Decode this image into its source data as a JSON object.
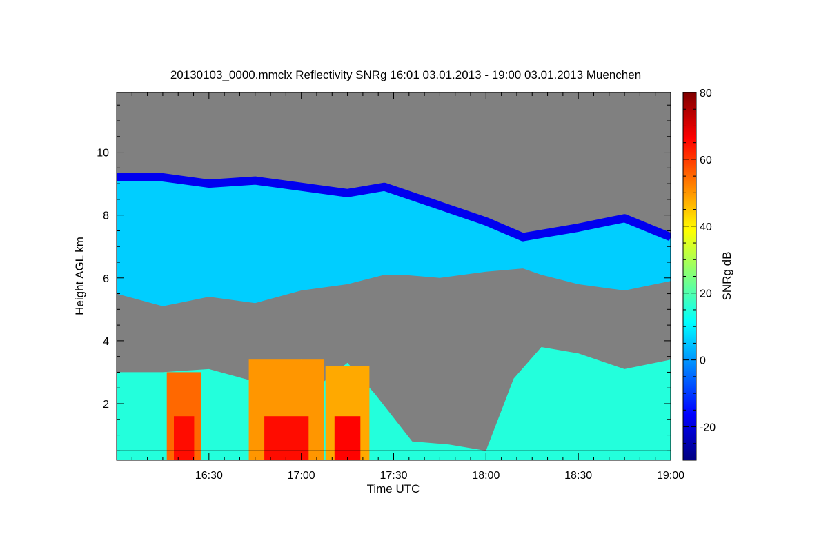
{
  "chart_data": {
    "type": "heatmap",
    "title": "20130103_0000.mmclx Reflectivity SNRg   16:01 03.01.2013 - 19:00 03.01.2013 Muenchen",
    "xlabel": "Time UTC",
    "ylabel": "Height AGL km",
    "colorbar_label": "SNRg dB",
    "x_range_hours": [
      16.0,
      19.0
    ],
    "y_range_km": [
      0.2,
      11.9
    ],
    "x_ticks": [
      {
        "value": 16.5,
        "label": "16:30"
      },
      {
        "value": 17.0,
        "label": "17:00"
      },
      {
        "value": 17.5,
        "label": "17:30"
      },
      {
        "value": 18.0,
        "label": "18:00"
      },
      {
        "value": 18.5,
        "label": "18:30"
      },
      {
        "value": 19.0,
        "label": "19:00"
      }
    ],
    "y_ticks": [
      {
        "value": 2,
        "label": "2"
      },
      {
        "value": 4,
        "label": "4"
      },
      {
        "value": 6,
        "label": "6"
      },
      {
        "value": 8,
        "label": "8"
      },
      {
        "value": 10,
        "label": "10"
      }
    ],
    "colorbar_range": [
      -30,
      80
    ],
    "colorbar_ticks": [
      {
        "value": -20,
        "label": "-20"
      },
      {
        "value": 0,
        "label": "0"
      },
      {
        "value": 20,
        "label": "20"
      },
      {
        "value": 40,
        "label": "40"
      },
      {
        "value": 60,
        "label": "60"
      },
      {
        "value": 80,
        "label": "80"
      }
    ],
    "colormap": [
      "#00007f",
      "#0000ff",
      "#007fff",
      "#00ffff",
      "#7fff7f",
      "#ffff00",
      "#ff7f00",
      "#ff0000",
      "#7f0000"
    ],
    "no_signal_color": "#808080",
    "reference_line_km": 0.5,
    "upper_cloud_layer": {
      "time_hours": [
        16.0,
        16.25,
        16.5,
        16.75,
        17.0,
        17.25,
        17.45,
        17.55,
        17.75,
        18.0,
        18.2,
        18.3,
        18.5,
        18.75,
        19.0
      ],
      "top_km": [
        9.2,
        9.2,
        9.0,
        9.1,
        8.9,
        8.7,
        8.9,
        8.7,
        8.3,
        7.8,
        7.3,
        7.4,
        7.6,
        7.9,
        7.3
      ],
      "base_km": [
        5.5,
        5.1,
        5.4,
        5.2,
        5.6,
        5.8,
        6.1,
        6.1,
        6.0,
        6.2,
        6.3,
        6.1,
        5.8,
        5.6,
        5.9
      ],
      "snr_db": 6
    },
    "low_cloud_layer": {
      "time_hours": [
        16.0,
        16.25,
        16.5,
        16.75,
        16.9,
        17.0,
        17.1,
        17.25,
        17.4,
        17.6,
        17.8,
        18.0,
        18.15,
        18.3,
        18.5,
        18.75,
        19.0
      ],
      "top_km": [
        3.0,
        3.0,
        3.1,
        2.7,
        3.3,
        3.4,
        2.6,
        3.3,
        2.3,
        0.8,
        0.7,
        0.5,
        2.8,
        3.8,
        3.6,
        3.1,
        3.4
      ],
      "snr_db": 15
    },
    "convective_cores": [
      {
        "start_hour": 16.31,
        "end_hour": 16.42,
        "top_km": 3.0,
        "peak_db": 55,
        "core_db": 65
      },
      {
        "start_hour": 16.8,
        "end_hour": 17.04,
        "top_km": 3.4,
        "peak_db": 50,
        "core_db": 65
      },
      {
        "start_hour": 17.18,
        "end_hour": 17.32,
        "top_km": 3.2,
        "peak_db": 48,
        "core_db": 66
      }
    ]
  }
}
